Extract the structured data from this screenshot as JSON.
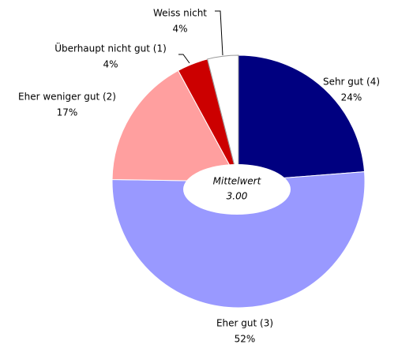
{
  "chart_data": {
    "type": "pie",
    "categories": [
      "Sehr gut (4)",
      "Eher gut (3)",
      "Eher weniger gut (2)",
      "Überhaupt nicht gut (1)",
      "Weiss nicht"
    ],
    "values": [
      24,
      52,
      17,
      4,
      4
    ],
    "value_labels": [
      "24%",
      "52%",
      "17%",
      "4%",
      "4%"
    ],
    "colors": [
      "#000080",
      "#9999ff",
      "#ff9f9f",
      "#cc0000",
      "#ffffff"
    ],
    "annotation": [
      "Mittelwert",
      "3.00"
    ]
  }
}
